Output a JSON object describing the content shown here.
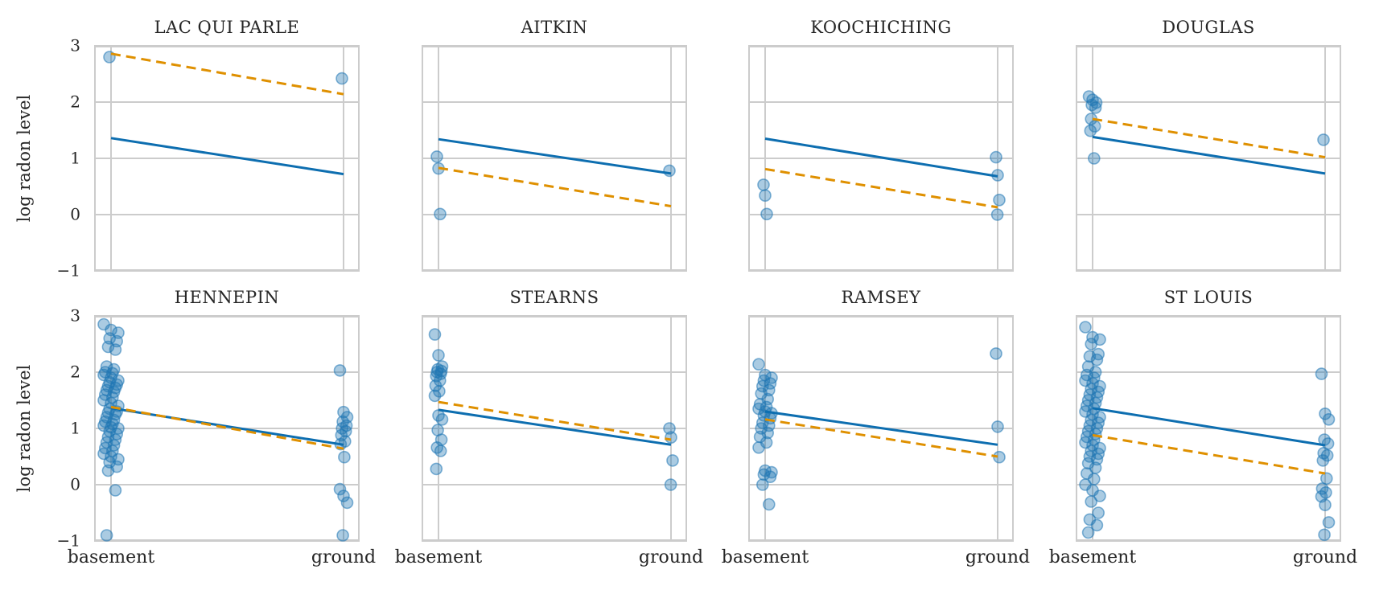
{
  "figure": {
    "ylabel": "log radon level",
    "x_categories": [
      "basement",
      "ground"
    ],
    "y_ticks": [
      {
        "label": "3",
        "value": 3
      },
      {
        "label": "2",
        "value": 2
      },
      {
        "label": "1",
        "value": 1
      },
      {
        "label": "0",
        "value": 0
      },
      {
        "label": "−1",
        "value": -1
      }
    ],
    "colors": {
      "scatter": "#1f77b4",
      "solid_line": "#0d6eb0",
      "dashed_line": "#df9000",
      "grid": "#cccccc",
      "text": "#262626"
    }
  },
  "chart_data": [
    {
      "type": "scatter",
      "title": "LAC QUI PARLE",
      "x_categories": [
        "basement",
        "ground"
      ],
      "ylim": [
        -1,
        3
      ],
      "grid_y": [
        3,
        2,
        1,
        0,
        -1
      ],
      "points": {
        "basement": [
          2.8
        ],
        "ground": [
          2.42
        ]
      },
      "series": [
        {
          "style": "solid",
          "color": "#0d6eb0",
          "y": [
            1.36,
            0.72
          ]
        },
        {
          "style": "dashed",
          "color": "#df9000",
          "y": [
            2.86,
            2.14
          ]
        }
      ]
    },
    {
      "type": "scatter",
      "title": "AITKIN",
      "x_categories": [
        "basement",
        "ground"
      ],
      "ylim": [
        -1,
        3
      ],
      "grid_y": [
        3,
        2,
        1,
        0,
        -1
      ],
      "points": {
        "basement": [
          1.03,
          0.82,
          0.01
        ],
        "ground": [
          0.78
        ]
      },
      "series": [
        {
          "style": "solid",
          "color": "#0d6eb0",
          "y": [
            1.34,
            0.73
          ]
        },
        {
          "style": "dashed",
          "color": "#df9000",
          "y": [
            0.83,
            0.15
          ]
        }
      ]
    },
    {
      "type": "scatter",
      "title": "KOOCHICHING",
      "x_categories": [
        "basement",
        "ground"
      ],
      "ylim": [
        -1,
        3
      ],
      "grid_y": [
        3,
        2,
        1,
        0,
        -1
      ],
      "points": {
        "basement": [
          0.53,
          0.34,
          0.01
        ],
        "ground": [
          1.02,
          0.7,
          0.26,
          0.0
        ]
      },
      "series": [
        {
          "style": "solid",
          "color": "#0d6eb0",
          "y": [
            1.35,
            0.68
          ]
        },
        {
          "style": "dashed",
          "color": "#df9000",
          "y": [
            0.81,
            0.13
          ]
        }
      ]
    },
    {
      "type": "scatter",
      "title": "DOUGLAS",
      "x_categories": [
        "basement",
        "ground"
      ],
      "ylim": [
        -1,
        3
      ],
      "grid_y": [
        3,
        2,
        1,
        0,
        -1
      ],
      "points": {
        "basement": [
          2.1,
          2.04,
          1.99,
          1.95,
          1.9,
          1.7,
          1.57,
          1.49,
          1.0
        ],
        "ground": [
          1.33
        ]
      },
      "series": [
        {
          "style": "solid",
          "color": "#0d6eb0",
          "y": [
            1.38,
            0.73
          ]
        },
        {
          "style": "dashed",
          "color": "#df9000",
          "y": [
            1.7,
            1.02
          ]
        }
      ]
    },
    {
      "type": "scatter",
      "title": "HENNEPIN",
      "x_categories": [
        "basement",
        "ground"
      ],
      "ylim": [
        -1,
        3
      ],
      "grid_y": [
        3,
        2,
        1,
        0,
        -1
      ],
      "points": {
        "basement": [
          2.85,
          2.75,
          2.7,
          2.6,
          2.55,
          2.45,
          2.4,
          2.1,
          2.05,
          2.0,
          1.98,
          1.95,
          1.9,
          1.85,
          1.82,
          1.78,
          1.75,
          1.72,
          1.68,
          1.65,
          1.6,
          1.55,
          1.5,
          1.45,
          1.4,
          1.35,
          1.3,
          1.28,
          1.25,
          1.2,
          1.15,
          1.12,
          1.08,
          1.05,
          1.02,
          1.0,
          0.95,
          0.9,
          0.85,
          0.8,
          0.75,
          0.7,
          0.65,
          0.6,
          0.55,
          0.5,
          0.45,
          0.4,
          0.32,
          0.25,
          -0.1,
          -0.9
        ],
        "ground": [
          2.03,
          1.29,
          1.2,
          1.12,
          1.05,
          1.0,
          0.95,
          0.88,
          0.77,
          0.72,
          0.49,
          -0.08,
          -0.2,
          -0.32,
          -0.9
        ]
      },
      "series": [
        {
          "style": "solid",
          "color": "#0d6eb0",
          "y": [
            1.36,
            0.71
          ]
        },
        {
          "style": "dashed",
          "color": "#df9000",
          "y": [
            1.38,
            0.64
          ]
        }
      ]
    },
    {
      "type": "scatter",
      "title": "STEARNS",
      "x_categories": [
        "basement",
        "ground"
      ],
      "ylim": [
        -1,
        3
      ],
      "grid_y": [
        3,
        2,
        1,
        0,
        -1
      ],
      "points": {
        "basement": [
          2.67,
          2.3,
          2.1,
          2.05,
          2.02,
          2.0,
          1.97,
          1.93,
          1.85,
          1.76,
          1.66,
          1.58,
          1.23,
          1.16,
          0.97,
          0.8,
          0.66,
          0.6,
          0.28
        ],
        "ground": [
          1.0,
          0.84,
          0.43,
          0.0
        ]
      },
      "series": [
        {
          "style": "solid",
          "color": "#0d6eb0",
          "y": [
            1.33,
            0.71
          ]
        },
        {
          "style": "dashed",
          "color": "#df9000",
          "y": [
            1.47,
            0.8
          ]
        }
      ]
    },
    {
      "type": "scatter",
      "title": "RAMSEY",
      "x_categories": [
        "basement",
        "ground"
      ],
      "ylim": [
        -1,
        3
      ],
      "grid_y": [
        3,
        2,
        1,
        0,
        -1
      ],
      "points": {
        "basement": [
          2.14,
          1.95,
          1.9,
          1.85,
          1.8,
          1.75,
          1.68,
          1.62,
          1.52,
          1.43,
          1.38,
          1.35,
          1.3,
          1.27,
          1.23,
          1.18,
          1.1,
          1.05,
          1.0,
          0.92,
          0.85,
          0.75,
          0.66,
          0.25,
          0.22,
          0.18,
          0.14,
          0.0,
          -0.35
        ],
        "ground": [
          2.33,
          1.03,
          0.49
        ]
      },
      "series": [
        {
          "style": "solid",
          "color": "#0d6eb0",
          "y": [
            1.3,
            0.71
          ]
        },
        {
          "style": "dashed",
          "color": "#df9000",
          "y": [
            1.16,
            0.5
          ]
        }
      ]
    },
    {
      "type": "scatter",
      "title": "ST LOUIS",
      "x_categories": [
        "basement",
        "ground"
      ],
      "ylim": [
        -1,
        3
      ],
      "grid_y": [
        3,
        2,
        1,
        0,
        -1
      ],
      "points": {
        "basement": [
          2.8,
          2.62,
          2.58,
          2.5,
          2.32,
          2.28,
          2.22,
          2.1,
          2.0,
          1.95,
          1.9,
          1.85,
          1.8,
          1.75,
          1.7,
          1.65,
          1.6,
          1.55,
          1.5,
          1.45,
          1.4,
          1.35,
          1.3,
          1.25,
          1.2,
          1.15,
          1.1,
          1.05,
          1.0,
          0.95,
          0.9,
          0.85,
          0.8,
          0.75,
          0.7,
          0.65,
          0.6,
          0.55,
          0.5,
          0.45,
          0.38,
          0.3,
          0.2,
          0.1,
          0.0,
          -0.1,
          -0.2,
          -0.3,
          -0.5,
          -0.62,
          -0.72,
          -0.85
        ],
        "ground": [
          1.97,
          1.26,
          1.16,
          0.8,
          0.73,
          0.56,
          0.52,
          0.43,
          0.11,
          -0.07,
          -0.14,
          -0.21,
          -0.36,
          -0.67,
          -0.89
        ]
      },
      "series": [
        {
          "style": "solid",
          "color": "#0d6eb0",
          "y": [
            1.36,
            0.7
          ]
        },
        {
          "style": "dashed",
          "color": "#df9000",
          "y": [
            0.88,
            0.2
          ]
        }
      ]
    }
  ]
}
